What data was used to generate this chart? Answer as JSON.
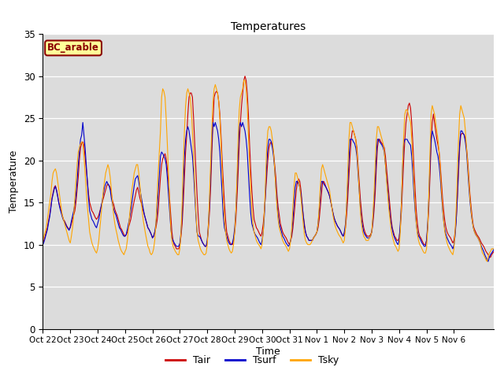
{
  "title": "Temperatures",
  "xlabel": "Time",
  "ylabel": "Temperature",
  "ylim": [
    0,
    35
  ],
  "yticks": [
    0,
    5,
    10,
    15,
    20,
    25,
    30,
    35
  ],
  "annotation": "BC_arable",
  "annotation_color": "#8B0000",
  "annotation_bg": "#FFFF99",
  "bg_color": "#DCDCDC",
  "line_colors": {
    "Tair": "#CC0000",
    "Tsurf": "#0000CC",
    "Tsky": "#FFA500"
  },
  "xtick_labels": [
    "Oct 22",
    "Oct 23",
    "Oct 24",
    "Oct 25",
    "Oct 26",
    "Oct 27",
    "Oct 28",
    "Oct 29",
    "Oct 30",
    "Oct 31",
    "Nov 1",
    "Nov 2",
    "Nov 3",
    "Nov 4",
    "Nov 5",
    "Nov 6"
  ],
  "n_per_day": 24,
  "Tair": [
    10.2,
    10.5,
    11.0,
    11.5,
    12.0,
    12.8,
    13.5,
    14.5,
    15.5,
    16.2,
    16.8,
    17.0,
    16.5,
    15.8,
    15.0,
    14.5,
    14.0,
    13.5,
    13.0,
    12.8,
    12.5,
    12.2,
    12.0,
    11.8,
    12.0,
    12.5,
    13.0,
    13.5,
    14.0,
    15.0,
    16.5,
    18.0,
    20.0,
    21.5,
    22.0,
    22.2,
    21.8,
    20.5,
    19.0,
    17.5,
    16.0,
    15.0,
    14.5,
    14.0,
    13.8,
    13.5,
    13.2,
    13.0,
    13.2,
    13.5,
    14.0,
    14.5,
    15.0,
    15.5,
    16.0,
    16.5,
    17.0,
    17.2,
    17.0,
    16.8,
    16.0,
    15.2,
    14.8,
    14.2,
    13.8,
    13.5,
    13.0,
    12.5,
    12.0,
    11.8,
    11.5,
    11.2,
    11.0,
    11.2,
    11.5,
    12.0,
    12.5,
    13.0,
    13.8,
    14.5,
    15.2,
    15.8,
    16.5,
    16.8,
    16.2,
    15.5,
    15.0,
    14.5,
    14.0,
    13.5,
    13.0,
    12.5,
    12.0,
    11.8,
    11.5,
    11.2,
    10.8,
    11.0,
    11.5,
    12.0,
    12.8,
    14.0,
    16.0,
    18.0,
    19.5,
    20.2,
    20.5,
    20.8,
    20.2,
    19.0,
    17.5,
    15.5,
    13.5,
    11.5,
    10.5,
    10.0,
    9.8,
    9.5,
    9.5,
    9.5,
    10.0,
    11.0,
    12.5,
    15.0,
    18.0,
    21.0,
    23.0,
    25.5,
    27.5,
    28.0,
    28.0,
    27.5,
    25.0,
    22.0,
    19.0,
    16.0,
    13.5,
    11.5,
    11.0,
    10.5,
    10.2,
    10.0,
    9.8,
    9.8,
    10.5,
    12.0,
    14.0,
    17.0,
    21.0,
    24.5,
    27.5,
    28.0,
    28.2,
    28.0,
    27.0,
    25.5,
    23.0,
    20.0,
    17.5,
    15.0,
    13.0,
    11.5,
    11.0,
    10.5,
    10.2,
    10.0,
    10.0,
    10.5,
    11.5,
    13.0,
    15.5,
    18.5,
    22.0,
    24.5,
    26.5,
    28.0,
    29.5,
    30.0,
    29.5,
    28.0,
    25.5,
    22.0,
    19.0,
    16.5,
    14.5,
    13.0,
    12.5,
    12.0,
    11.8,
    11.5,
    11.2,
    11.0,
    11.5,
    12.5,
    14.0,
    16.0,
    18.0,
    20.0,
    21.5,
    22.0,
    22.2,
    21.8,
    21.0,
    19.5,
    18.0,
    16.0,
    14.5,
    13.5,
    12.5,
    12.0,
    11.5,
    11.2,
    11.0,
    10.8,
    10.5,
    10.2,
    10.0,
    10.5,
    11.0,
    12.0,
    13.5,
    15.0,
    16.5,
    17.5,
    17.8,
    17.5,
    16.5,
    15.0,
    13.5,
    12.5,
    11.5,
    11.0,
    10.8,
    10.5,
    10.5,
    10.5,
    10.5,
    10.8,
    11.0,
    11.2,
    11.5,
    12.0,
    13.0,
    14.5,
    16.0,
    17.5,
    17.5,
    17.2,
    16.8,
    16.5,
    16.2,
    15.8,
    15.2,
    14.5,
    13.8,
    13.2,
    12.8,
    12.5,
    12.2,
    12.0,
    11.8,
    11.5,
    11.2,
    11.0,
    11.2,
    12.0,
    13.5,
    15.5,
    18.0,
    20.5,
    22.5,
    23.5,
    23.5,
    23.0,
    22.5,
    21.5,
    19.5,
    17.5,
    15.5,
    14.0,
    12.8,
    12.0,
    11.5,
    11.2,
    11.0,
    11.0,
    11.0,
    11.2,
    11.5,
    12.5,
    14.0,
    16.0,
    19.0,
    21.5,
    22.5,
    22.5,
    22.2,
    22.0,
    21.8,
    21.5,
    20.5,
    19.0,
    17.5,
    16.0,
    14.5,
    13.0,
    12.0,
    11.5,
    11.0,
    10.8,
    10.5,
    10.5,
    10.8,
    12.0,
    14.0,
    17.0,
    20.0,
    22.5,
    24.5,
    25.5,
    26.5,
    26.8,
    26.2,
    24.5,
    22.0,
    19.0,
    16.5,
    14.0,
    12.5,
    11.5,
    11.0,
    10.8,
    10.5,
    10.2,
    10.0,
    10.0,
    10.5,
    12.0,
    14.5,
    18.0,
    22.0,
    24.5,
    25.5,
    24.5,
    23.5,
    22.5,
    21.8,
    21.0,
    19.5,
    17.5,
    15.5,
    14.0,
    12.8,
    12.0,
    11.5,
    11.2,
    11.0,
    10.8,
    10.5,
    10.2,
    10.5,
    11.5,
    13.0,
    15.5,
    18.5,
    21.5,
    23.0,
    23.2,
    23.2,
    23.0,
    22.5,
    21.5,
    20.0,
    18.0,
    16.0,
    14.5,
    13.2,
    12.2,
    11.8,
    11.5,
    11.2,
    11.0,
    10.8,
    10.5,
    10.2,
    10.0,
    9.8,
    9.5,
    9.2,
    9.0,
    8.8,
    8.5,
    8.5,
    8.8,
    9.0,
    9.2
  ],
  "Tsurf": [
    10.0,
    10.3,
    10.8,
    11.3,
    11.8,
    12.6,
    13.3,
    14.3,
    15.4,
    16.0,
    16.6,
    16.9,
    16.4,
    15.7,
    14.9,
    14.3,
    13.8,
    13.3,
    12.9,
    12.7,
    12.4,
    12.1,
    11.9,
    11.7,
    12.1,
    12.8,
    13.4,
    14.0,
    14.8,
    15.8,
    17.5,
    19.5,
    21.0,
    22.5,
    23.0,
    24.5,
    23.0,
    21.5,
    19.5,
    17.5,
    15.5,
    14.0,
    13.5,
    13.0,
    12.8,
    12.5,
    12.2,
    12.0,
    12.5,
    13.0,
    13.8,
    14.5,
    15.2,
    16.0,
    16.8,
    17.2,
    17.5,
    17.2,
    17.0,
    16.5,
    15.5,
    14.8,
    14.2,
    13.8,
    13.5,
    13.0,
    12.5,
    12.0,
    11.8,
    11.5,
    11.2,
    11.0,
    11.0,
    11.2,
    11.8,
    12.5,
    13.2,
    14.0,
    15.0,
    16.0,
    17.0,
    17.8,
    18.0,
    18.2,
    17.5,
    16.5,
    15.8,
    15.0,
    14.2,
    13.5,
    13.0,
    12.5,
    12.0,
    11.8,
    11.5,
    11.2,
    10.8,
    11.0,
    11.5,
    12.5,
    14.0,
    16.2,
    18.5,
    20.5,
    21.0,
    20.8,
    20.5,
    20.2,
    19.5,
    18.0,
    16.0,
    14.0,
    12.0,
    10.8,
    10.5,
    10.2,
    10.0,
    9.8,
    9.8,
    9.8,
    10.2,
    11.5,
    13.5,
    17.0,
    20.5,
    22.5,
    23.5,
    24.0,
    23.5,
    22.5,
    21.5,
    20.5,
    18.5,
    16.0,
    13.5,
    11.5,
    11.0,
    11.0,
    10.8,
    10.5,
    10.2,
    10.0,
    9.8,
    9.8,
    10.5,
    12.5,
    15.0,
    18.5,
    22.5,
    24.5,
    24.0,
    24.5,
    24.0,
    23.5,
    22.5,
    21.0,
    18.5,
    16.0,
    13.5,
    12.0,
    11.5,
    11.0,
    10.5,
    10.2,
    10.0,
    10.0,
    10.2,
    10.8,
    12.0,
    14.0,
    17.0,
    20.5,
    24.0,
    24.5,
    24.0,
    24.5,
    24.0,
    23.5,
    22.5,
    21.0,
    18.5,
    16.0,
    13.8,
    12.5,
    12.0,
    11.5,
    11.2,
    11.0,
    10.8,
    10.5,
    10.2,
    10.0,
    10.5,
    11.5,
    13.5,
    16.5,
    19.5,
    21.5,
    22.5,
    22.5,
    22.2,
    21.5,
    20.5,
    19.0,
    17.0,
    15.0,
    13.5,
    12.5,
    12.0,
    11.5,
    11.0,
    10.8,
    10.5,
    10.2,
    10.0,
    9.8,
    10.0,
    10.5,
    11.5,
    13.0,
    15.0,
    16.8,
    17.5,
    17.5,
    17.2,
    16.8,
    16.0,
    14.8,
    13.5,
    12.2,
    11.5,
    11.0,
    10.8,
    10.5,
    10.5,
    10.5,
    10.5,
    10.8,
    11.0,
    11.2,
    11.5,
    12.5,
    14.0,
    16.0,
    17.5,
    17.5,
    17.2,
    17.0,
    16.8,
    16.5,
    16.2,
    15.8,
    15.2,
    14.5,
    13.8,
    13.2,
    12.8,
    12.5,
    12.2,
    12.0,
    11.8,
    11.5,
    11.2,
    11.0,
    11.5,
    12.5,
    14.5,
    17.0,
    20.0,
    22.5,
    22.5,
    22.5,
    22.2,
    22.0,
    21.5,
    20.5,
    18.5,
    16.5,
    14.5,
    13.0,
    12.2,
    11.5,
    11.2,
    11.0,
    10.8,
    10.8,
    10.8,
    11.0,
    11.5,
    13.0,
    15.0,
    17.5,
    20.5,
    22.5,
    22.5,
    22.2,
    22.0,
    21.8,
    21.5,
    21.0,
    19.5,
    18.0,
    16.5,
    15.0,
    13.5,
    12.5,
    11.8,
    11.2,
    10.8,
    10.5,
    10.2,
    10.0,
    10.5,
    12.5,
    15.0,
    19.0,
    22.0,
    22.5,
    22.5,
    22.5,
    22.2,
    22.0,
    21.8,
    20.5,
    18.5,
    16.0,
    14.0,
    12.5,
    11.5,
    11.0,
    10.8,
    10.5,
    10.2,
    10.0,
    9.8,
    9.8,
    10.5,
    12.5,
    15.5,
    19.5,
    22.5,
    23.5,
    23.0,
    22.5,
    21.8,
    21.0,
    20.5,
    19.5,
    18.0,
    16.0,
    14.2,
    12.8,
    11.8,
    11.2,
    10.8,
    10.5,
    10.2,
    10.0,
    9.8,
    9.5,
    10.0,
    11.0,
    13.0,
    16.0,
    19.5,
    22.0,
    23.5,
    23.5,
    23.2,
    23.0,
    22.2,
    21.0,
    19.0,
    17.0,
    15.2,
    13.8,
    12.8,
    12.0,
    11.5,
    11.2,
    11.0,
    10.8,
    10.5,
    10.2,
    9.8,
    9.5,
    9.2,
    8.8,
    8.5,
    8.2,
    8.0,
    8.5,
    8.8,
    9.0,
    9.2,
    9.5
  ],
  "Tsky": [
    10.5,
    11.0,
    11.5,
    12.0,
    13.0,
    14.0,
    15.0,
    16.0,
    17.5,
    18.5,
    18.8,
    19.0,
    18.5,
    17.5,
    16.5,
    15.5,
    14.5,
    13.5,
    13.0,
    12.5,
    12.0,
    11.5,
    11.0,
    10.5,
    10.2,
    11.0,
    12.0,
    13.5,
    15.5,
    17.5,
    19.5,
    21.0,
    21.5,
    22.0,
    22.2,
    22.0,
    20.5,
    18.5,
    16.5,
    14.5,
    13.0,
    11.5,
    10.8,
    10.2,
    9.8,
    9.5,
    9.2,
    9.0,
    9.5,
    10.5,
    12.0,
    13.5,
    15.0,
    16.5,
    17.5,
    18.5,
    19.0,
    19.5,
    19.0,
    18.0,
    16.5,
    15.0,
    13.5,
    12.5,
    11.8,
    11.2,
    10.5,
    10.0,
    9.5,
    9.2,
    9.0,
    8.8,
    9.2,
    9.5,
    10.5,
    12.0,
    13.5,
    15.0,
    16.5,
    17.5,
    18.5,
    19.0,
    19.5,
    19.5,
    18.5,
    17.0,
    15.5,
    14.0,
    12.8,
    12.0,
    11.2,
    10.5,
    9.8,
    9.5,
    9.0,
    8.8,
    9.0,
    9.5,
    10.5,
    12.5,
    15.5,
    18.5,
    21.0,
    23.5,
    27.5,
    28.5,
    28.2,
    27.5,
    25.0,
    22.0,
    18.5,
    15.0,
    12.0,
    10.5,
    9.8,
    9.5,
    9.2,
    9.0,
    8.8,
    8.8,
    9.5,
    11.5,
    15.0,
    19.5,
    23.5,
    26.5,
    28.0,
    28.5,
    28.0,
    27.5,
    26.0,
    23.5,
    20.5,
    17.0,
    14.0,
    11.5,
    10.5,
    10.0,
    9.5,
    9.2,
    9.0,
    8.8,
    8.8,
    9.0,
    10.0,
    12.5,
    16.0,
    20.0,
    24.0,
    27.0,
    28.5,
    29.0,
    28.5,
    28.0,
    27.0,
    25.0,
    22.0,
    18.5,
    15.5,
    13.0,
    11.5,
    10.5,
    10.0,
    9.5,
    9.2,
    9.0,
    9.2,
    10.0,
    11.5,
    14.0,
    18.0,
    22.5,
    26.0,
    27.5,
    28.0,
    28.5,
    29.5,
    29.5,
    28.5,
    26.5,
    23.0,
    19.5,
    16.5,
    14.0,
    12.5,
    11.5,
    11.0,
    10.5,
    10.2,
    10.0,
    9.8,
    9.5,
    10.0,
    11.5,
    14.0,
    17.5,
    21.5,
    23.5,
    24.0,
    24.0,
    23.5,
    22.5,
    21.0,
    19.0,
    16.5,
    14.5,
    13.0,
    12.0,
    11.5,
    11.0,
    10.5,
    10.2,
    10.0,
    9.8,
    9.5,
    9.2,
    9.5,
    10.5,
    12.0,
    14.5,
    17.0,
    18.5,
    18.5,
    18.0,
    17.5,
    16.8,
    15.5,
    14.0,
    12.5,
    11.2,
    10.5,
    10.2,
    10.0,
    10.0,
    10.0,
    10.2,
    10.5,
    10.8,
    11.0,
    11.2,
    11.5,
    12.5,
    14.5,
    17.0,
    19.0,
    19.5,
    19.0,
    18.5,
    18.0,
    17.5,
    17.0,
    16.5,
    15.5,
    14.5,
    13.5,
    12.8,
    12.2,
    11.8,
    11.5,
    11.2,
    11.0,
    10.8,
    10.5,
    10.2,
    10.5,
    12.0,
    15.0,
    18.5,
    22.5,
    24.5,
    24.5,
    24.0,
    23.5,
    23.0,
    22.5,
    21.0,
    19.0,
    16.5,
    14.0,
    12.5,
    11.5,
    11.0,
    10.8,
    10.5,
    10.5,
    10.5,
    10.8,
    11.0,
    11.5,
    13.5,
    16.0,
    19.5,
    22.5,
    24.0,
    24.0,
    23.5,
    23.0,
    22.5,
    22.0,
    21.0,
    19.5,
    17.5,
    15.8,
    14.2,
    13.0,
    11.8,
    11.0,
    10.5,
    10.0,
    9.8,
    9.5,
    9.2,
    9.5,
    11.5,
    15.0,
    19.5,
    23.0,
    25.5,
    26.0,
    26.0,
    25.5,
    25.0,
    24.5,
    22.5,
    20.0,
    17.0,
    14.5,
    12.5,
    11.2,
    10.5,
    10.0,
    9.8,
    9.5,
    9.2,
    9.0,
    9.0,
    9.5,
    12.0,
    16.0,
    21.0,
    25.5,
    26.5,
    26.0,
    25.5,
    24.5,
    23.5,
    22.5,
    21.0,
    19.0,
    16.5,
    14.5,
    12.8,
    11.5,
    10.8,
    10.2,
    9.8,
    9.5,
    9.2,
    9.0,
    8.8,
    9.5,
    11.5,
    14.5,
    18.5,
    22.5,
    25.5,
    26.5,
    26.0,
    25.5,
    25.0,
    23.5,
    21.5,
    19.5,
    17.5,
    15.5,
    14.0,
    12.8,
    12.0,
    11.5,
    11.2,
    11.0,
    10.8,
    10.5,
    10.2,
    9.5,
    9.0,
    8.8,
    8.5,
    8.2,
    8.0,
    8.5,
    9.0,
    9.2,
    9.5,
    9.5,
    9.5
  ]
}
